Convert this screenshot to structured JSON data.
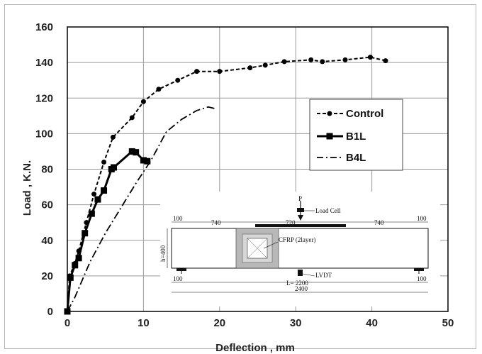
{
  "chart_data": {
    "type": "line",
    "xlabel": "Deflection , mm",
    "ylabel": "Load , K.N.",
    "xlim": [
      0,
      50
    ],
    "ylim": [
      0,
      160
    ],
    "xticks": [
      0,
      10,
      20,
      30,
      40,
      50
    ],
    "yticks": [
      0,
      20,
      40,
      60,
      80,
      100,
      120,
      140,
      160
    ],
    "grid": true,
    "legend_position": "right",
    "series": [
      {
        "name": "Control",
        "style": "dashed-circle",
        "color": "#000000",
        "points": [
          [
            0,
            0
          ],
          [
            0.3,
            20
          ],
          [
            1.0,
            27
          ],
          [
            1.5,
            34
          ],
          [
            2.5,
            50
          ],
          [
            3.5,
            66
          ],
          [
            4.8,
            84
          ],
          [
            6.0,
            98
          ],
          [
            8.5,
            109
          ],
          [
            10.0,
            118
          ],
          [
            12.0,
            125
          ],
          [
            14.5,
            130
          ],
          [
            17.0,
            135
          ],
          [
            20.0,
            135
          ],
          [
            24.0,
            137
          ],
          [
            26.0,
            138.5
          ],
          [
            28.5,
            140.5
          ],
          [
            32.0,
            141.5
          ],
          [
            33.5,
            140.5
          ],
          [
            36.5,
            141.5
          ],
          [
            39.8,
            143
          ],
          [
            41.8,
            141
          ]
        ]
      },
      {
        "name": "B1L",
        "style": "solid-square",
        "color": "#000000",
        "points": [
          [
            0,
            0
          ],
          [
            0.4,
            19
          ],
          [
            1.0,
            26
          ],
          [
            1.5,
            30
          ],
          [
            2.3,
            44
          ],
          [
            3.2,
            55
          ],
          [
            4.0,
            63
          ],
          [
            4.8,
            68
          ],
          [
            5.8,
            80
          ],
          [
            6.1,
            81
          ],
          [
            8.5,
            90
          ],
          [
            9.0,
            89.5
          ],
          [
            10.0,
            85
          ],
          [
            10.5,
            84.5
          ]
        ]
      },
      {
        "name": "B4L",
        "style": "dash-dot",
        "color": "#000000",
        "points": [
          [
            0,
            0
          ],
          [
            1,
            8
          ],
          [
            3,
            28
          ],
          [
            5,
            44
          ],
          [
            7,
            58
          ],
          [
            9,
            72
          ],
          [
            11,
            85
          ],
          [
            13,
            101
          ],
          [
            15,
            108
          ],
          [
            17,
            113
          ],
          [
            18.5,
            115
          ],
          [
            19.5,
            114
          ]
        ]
      }
    ],
    "inset_diagram": {
      "load_label": "P",
      "load_cell_label": "Load Cell",
      "cfrp_label": "CFRP (2layer)",
      "lvdt_label": "LVDT",
      "dim_100_left": "100",
      "dim_740_left": "740",
      "dim_720": "720",
      "dim_740_right": "740",
      "dim_100_right": "100",
      "height_label": "h=400",
      "support_left_label": "100",
      "support_right_label": "100",
      "span_label": "L= 2200",
      "total_label": "2400"
    }
  }
}
